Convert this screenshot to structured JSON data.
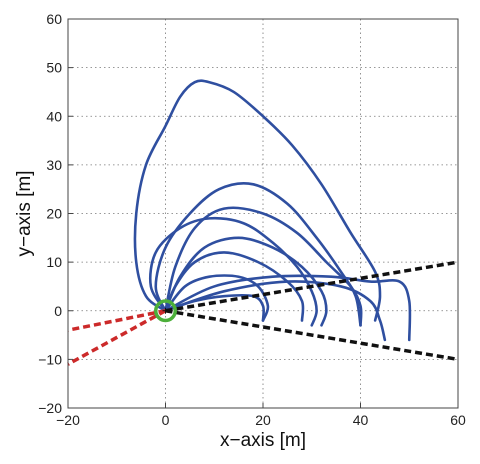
{
  "chart_data": {
    "type": "line",
    "title": "",
    "xlabel": "x−axis [m]",
    "ylabel": "y−axis [m]",
    "xlim": [
      -20,
      60
    ],
    "ylim": [
      -20,
      60
    ],
    "xticks": [
      "−20",
      "0",
      "20",
      "40",
      "60"
    ],
    "yticks": [
      "−20",
      "−10",
      "0",
      "10",
      "20",
      "30",
      "40",
      "50",
      "60"
    ],
    "grid": true,
    "grid_style": "dotted",
    "colors": {
      "trajectories": "#2f4fa0",
      "sensor_boundary": "#111111",
      "rear_boundary": "#cc2a2a",
      "origin_marker": "#4caf3a"
    },
    "series": [
      {
        "style": "solid",
        "color_key": "trajectories",
        "points": [
          [
            0,
            0
          ],
          [
            -4,
            3
          ],
          [
            -6,
            10
          ],
          [
            -6,
            20
          ],
          [
            -4,
            30
          ],
          [
            0,
            38
          ],
          [
            3,
            44
          ],
          [
            6,
            47
          ],
          [
            9,
            47
          ],
          [
            14,
            45
          ],
          [
            20,
            40
          ],
          [
            26,
            34
          ],
          [
            32,
            26
          ],
          [
            38,
            16
          ],
          [
            43,
            8
          ],
          [
            44,
            3
          ],
          [
            43,
            -2
          ]
        ]
      },
      {
        "style": "solid",
        "color_key": "trajectories",
        "points": [
          [
            0,
            0
          ],
          [
            -2,
            5
          ],
          [
            0,
            13
          ],
          [
            5,
            20
          ],
          [
            11,
            25
          ],
          [
            18,
            26
          ],
          [
            25,
            22
          ],
          [
            31,
            15
          ],
          [
            36,
            8
          ],
          [
            39,
            3
          ],
          [
            40,
            -3
          ]
        ]
      },
      {
        "style": "solid",
        "color_key": "trajectories",
        "points": [
          [
            0,
            0
          ],
          [
            2,
            9
          ],
          [
            6,
            17
          ],
          [
            12,
            21
          ],
          [
            20,
            20
          ],
          [
            27,
            16
          ],
          [
            33,
            10
          ],
          [
            38,
            5
          ],
          [
            40,
            1
          ],
          [
            40,
            -3
          ]
        ]
      },
      {
        "style": "solid",
        "color_key": "trajectories",
        "points": [
          [
            0,
            0
          ],
          [
            3,
            7
          ],
          [
            8,
            13
          ],
          [
            15,
            15
          ],
          [
            22,
            13
          ],
          [
            28,
            9
          ],
          [
            32,
            4
          ],
          [
            33,
            0
          ],
          [
            32,
            -3
          ]
        ]
      },
      {
        "style": "solid",
        "color_key": "trajectories",
        "points": [
          [
            0,
            0
          ],
          [
            -3,
            5
          ],
          [
            -2,
            12
          ],
          [
            3,
            17
          ],
          [
            9,
            19
          ],
          [
            16,
            18
          ],
          [
            22,
            14
          ],
          [
            27,
            9
          ],
          [
            30,
            4
          ],
          [
            31,
            0
          ],
          [
            30,
            -3
          ]
        ]
      },
      {
        "style": "solid",
        "color_key": "trajectories",
        "points": [
          [
            0,
            0
          ],
          [
            2,
            5
          ],
          [
            6,
            10
          ],
          [
            12,
            12
          ],
          [
            19,
            10
          ],
          [
            25,
            6
          ],
          [
            28,
            2
          ],
          [
            28,
            -2
          ]
        ]
      },
      {
        "style": "solid",
        "color_key": "trajectories",
        "points": [
          [
            0,
            0
          ],
          [
            4,
            5
          ],
          [
            9,
            7
          ],
          [
            15,
            7
          ],
          [
            19,
            5
          ],
          [
            21,
            1
          ],
          [
            20,
            -2
          ]
        ]
      },
      {
        "style": "solid",
        "color_key": "trajectories",
        "points": [
          [
            0,
            0
          ],
          [
            6,
            2
          ],
          [
            12,
            3
          ],
          [
            18,
            3
          ],
          [
            20,
            1
          ],
          [
            20,
            -2
          ]
        ]
      },
      {
        "style": "solid",
        "color_key": "trajectories",
        "points": [
          [
            0,
            0
          ],
          [
            10,
            5
          ],
          [
            22,
            7
          ],
          [
            34,
            7
          ],
          [
            42,
            6
          ],
          [
            48,
            6
          ],
          [
            50,
            2
          ],
          [
            50,
            -6
          ]
        ]
      },
      {
        "style": "solid",
        "color_key": "trajectories",
        "points": [
          [
            0,
            0
          ],
          [
            12,
            4
          ],
          [
            25,
            6
          ],
          [
            36,
            5
          ],
          [
            42,
            2
          ],
          [
            44,
            -2
          ],
          [
            45,
            -6
          ]
        ]
      },
      {
        "style": "dashed",
        "color_key": "sensor_boundary",
        "points": [
          [
            0,
            0
          ],
          [
            60,
            10
          ]
        ]
      },
      {
        "style": "dashed",
        "color_key": "sensor_boundary",
        "points": [
          [
            0,
            0
          ],
          [
            60,
            -10
          ]
        ]
      },
      {
        "style": "dashed",
        "color_key": "rear_boundary",
        "points": [
          [
            0,
            0
          ],
          [
            -20,
            -4
          ]
        ]
      },
      {
        "style": "dashed",
        "color_key": "rear_boundary",
        "points": [
          [
            0,
            0
          ],
          [
            -20,
            -11
          ]
        ]
      }
    ],
    "markers": [
      {
        "shape": "circle-open",
        "x": 0,
        "y": 0,
        "radius": 2,
        "color_key": "origin_marker"
      },
      {
        "shape": "plus",
        "x": 0,
        "y": 0,
        "color_key": "sensor_boundary"
      }
    ]
  }
}
